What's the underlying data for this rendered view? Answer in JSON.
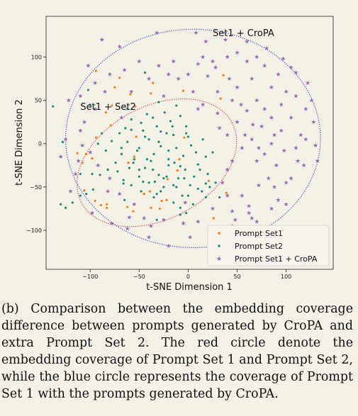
{
  "chart_data": {
    "type": "scatter",
    "title": "",
    "xlabel": "t-SNE Dimension 1",
    "ylabel": "t-SNE Dimension 2",
    "xlim": [
      -145,
      148
    ],
    "ylim": [
      -145,
      147
    ],
    "xticks": [
      -100,
      -50,
      0,
      50,
      100
    ],
    "yticks": [
      -100,
      -50,
      0,
      50,
      100
    ],
    "xtick_labels": [
      "−100",
      "−50",
      "0",
      "50",
      "100"
    ],
    "ytick_labels": [
      "−100",
      "−50",
      "0",
      "50",
      "100"
    ],
    "grid": false,
    "legend_position": "bottom-right",
    "series": [
      {
        "name": "Prompt Set1",
        "color": "#ff7f0e",
        "marker": "dot",
        "points": [
          [
            -78,
            44
          ],
          [
            -59,
            57
          ],
          [
            -36,
            70
          ],
          [
            -94,
            84
          ],
          [
            -83,
            -70
          ],
          [
            -70,
            76
          ],
          [
            -5,
            61
          ],
          [
            -75,
            65
          ],
          [
            -106,
            -54
          ],
          [
            -38,
            -74
          ],
          [
            -39,
            -55
          ],
          [
            -61,
            -22
          ],
          [
            33,
            52
          ],
          [
            36,
            79
          ],
          [
            -45,
            -58
          ],
          [
            -22,
            -65
          ],
          [
            -98,
            -17
          ],
          [
            21,
            -43
          ],
          [
            -84,
            36
          ],
          [
            -104,
            -12
          ],
          [
            -53,
            8
          ],
          [
            26,
            -86
          ],
          [
            -108,
            -22
          ],
          [
            -113,
            -11
          ],
          [
            -4,
            7
          ],
          [
            39,
            -57
          ],
          [
            -38,
            58
          ],
          [
            -27,
            -66
          ],
          [
            -79,
            21
          ],
          [
            -62,
            -73
          ],
          [
            -55,
            -15
          ],
          [
            -89,
            -71
          ],
          [
            -95,
            -66
          ],
          [
            -11,
            -31
          ],
          [
            -94,
            7
          ],
          [
            -29,
            -75
          ],
          [
            -54,
            43
          ],
          [
            -21,
            -41
          ],
          [
            -9,
            -18
          ],
          [
            -83,
            -74
          ],
          [
            -56,
            -78
          ]
        ]
      },
      {
        "name": "Prompt Set2",
        "color": "#1a8a7c",
        "marker": "dot",
        "points": [
          [
            -70,
            12
          ],
          [
            -58,
            16
          ],
          [
            -40,
            5
          ],
          [
            -28,
            -3
          ],
          [
            -15,
            10
          ],
          [
            -5,
            -14
          ],
          [
            3,
            -2
          ],
          [
            10,
            -24
          ],
          [
            -20,
            -25
          ],
          [
            -35,
            -12
          ],
          [
            -50,
            -5
          ],
          [
            -62,
            2
          ],
          [
            -44,
            -28
          ],
          [
            -30,
            -36
          ],
          [
            -10,
            -40
          ],
          [
            2,
            -48
          ],
          [
            14,
            -55
          ],
          [
            20,
            -35
          ],
          [
            8,
            -10
          ],
          [
            -2,
            20
          ],
          [
            -18,
            26
          ],
          [
            -32,
            20
          ],
          [
            -48,
            24
          ],
          [
            -55,
            -18
          ],
          [
            -68,
            -12
          ],
          [
            -78,
            3
          ],
          [
            -40,
            -45
          ],
          [
            -25,
            -50
          ],
          [
            -6,
            -60
          ],
          [
            5,
            -70
          ],
          [
            18,
            -62
          ],
          [
            28,
            -45
          ],
          [
            32,
            -62
          ],
          [
            -12,
            -5
          ],
          [
            -22,
            12
          ],
          [
            -36,
            30
          ],
          [
            -46,
            15
          ],
          [
            -58,
            28
          ],
          [
            -24,
            36
          ],
          [
            -8,
            32
          ],
          [
            0,
            8
          ],
          [
            15,
            5
          ],
          [
            25,
            -10
          ],
          [
            18,
            -15
          ],
          [
            -88,
            12
          ],
          [
            -72,
            -32
          ],
          [
            -50,
            -38
          ],
          [
            -66,
            -42
          ],
          [
            -35,
            -62
          ],
          [
            -15,
            -68
          ],
          [
            -2,
            -80
          ],
          [
            -20,
            -18
          ],
          [
            -42,
            -18
          ],
          [
            -64,
            18
          ],
          [
            -30,
            2
          ],
          [
            -12,
            -50
          ],
          [
            10,
            -52
          ],
          [
            -3,
            -30
          ],
          [
            -28,
            14
          ],
          [
            -52,
            -8
          ],
          [
            -38,
            -20
          ],
          [
            -20,
            -8
          ],
          [
            -8,
            -26
          ],
          [
            6,
            -38
          ],
          [
            22,
            -50
          ],
          [
            -44,
            8
          ],
          [
            -60,
            -28
          ],
          [
            -74,
            -22
          ],
          [
            -62,
            40
          ],
          [
            -30,
            48
          ],
          [
            -12,
            44
          ],
          [
            -48,
            -55
          ],
          [
            -28,
            -55
          ],
          [
            -15,
            -48
          ],
          [
            -4,
            -40
          ],
          [
            -92,
            0
          ],
          [
            -84,
            -8
          ],
          [
            -42,
            34
          ],
          [
            -16,
            20
          ],
          [
            -2,
            12
          ],
          [
            -34,
            -44
          ],
          [
            -22,
            -38
          ],
          [
            -8,
            -74
          ],
          [
            -58,
            -48
          ],
          [
            -82,
            -30
          ],
          [
            -68,
            -5
          ],
          [
            -50,
            -30
          ],
          [
            -36,
            -30
          ],
          [
            -14,
            -22
          ],
          [
            12,
            -30
          ],
          [
            0,
            -60
          ],
          [
            -25,
            -40
          ],
          [
            -46,
            -44
          ],
          [
            -65,
            -65
          ],
          [
            -100,
            45
          ],
          [
            -130,
            -70
          ],
          [
            -125,
            -74
          ],
          [
            -138,
            43
          ],
          [
            -98,
            -35
          ],
          [
            -32,
            -88
          ],
          [
            18,
            -46
          ],
          [
            -8,
            -82
          ],
          [
            -104,
            -58
          ],
          [
            -102,
            62
          ],
          [
            -118,
            -68
          ],
          [
            -128,
            2
          ],
          [
            -90,
            -36
          ],
          [
            -110,
            -60
          ],
          [
            -97,
            -53
          ],
          [
            -110,
            -35
          ],
          [
            -44,
            82
          ],
          [
            -32,
            -58
          ],
          [
            -66,
            -46
          ],
          [
            -56,
            -22
          ]
        ]
      },
      {
        "name": "Prompt Set1 + CroPA",
        "color": "#9a6ab8",
        "marker": "star",
        "points": [
          [
            -32,
            128
          ],
          [
            8,
            128
          ],
          [
            -70,
            112
          ],
          [
            -88,
            120
          ],
          [
            -102,
            90
          ],
          [
            -85,
            60
          ],
          [
            -110,
            55
          ],
          [
            -95,
            40
          ],
          [
            -122,
            50
          ],
          [
            -106,
            25
          ],
          [
            -125,
            5
          ],
          [
            -108,
            -2
          ],
          [
            -130,
            -15
          ],
          [
            -115,
            -35
          ],
          [
            -120,
            -55
          ],
          [
            -98,
            -80
          ],
          [
            -78,
            -92
          ],
          [
            -62,
            -98
          ],
          [
            -40,
            -108
          ],
          [
            -20,
            -118
          ],
          [
            2,
            -108
          ],
          [
            28,
            -102
          ],
          [
            45,
            -95
          ],
          [
            65,
            -86
          ],
          [
            85,
            -75
          ],
          [
            100,
            -45
          ],
          [
            112,
            -20
          ],
          [
            120,
            5
          ],
          [
            128,
            25
          ],
          [
            126,
            50
          ],
          [
            122,
            70
          ],
          [
            110,
            82
          ],
          [
            97,
            98
          ],
          [
            80,
            110
          ],
          [
            60,
            118
          ],
          [
            38,
            120
          ],
          [
            18,
            118
          ],
          [
            40,
            100
          ],
          [
            25,
            95
          ],
          [
            60,
            95
          ],
          [
            78,
            90
          ],
          [
            65,
            75
          ],
          [
            85,
            65
          ],
          [
            50,
            65
          ],
          [
            70,
            50
          ],
          [
            95,
            45
          ],
          [
            105,
            30
          ],
          [
            85,
            30
          ],
          [
            110,
            55
          ],
          [
            120,
            40
          ],
          [
            60,
            38
          ],
          [
            75,
            20
          ],
          [
            95,
            15
          ],
          [
            110,
            -5
          ],
          [
            85,
            0
          ],
          [
            65,
            5
          ],
          [
            70,
            -20
          ],
          [
            90,
            -25
          ],
          [
            105,
            -40
          ],
          [
            72,
            -48
          ],
          [
            55,
            -60
          ],
          [
            45,
            -78
          ],
          [
            62,
            -72
          ],
          [
            35,
            -45
          ],
          [
            45,
            -20
          ],
          [
            55,
            -5
          ],
          [
            40,
            10
          ],
          [
            50,
            25
          ],
          [
            30,
            35
          ],
          [
            15,
            45
          ],
          [
            5,
            60
          ],
          [
            -10,
            75
          ],
          [
            -30,
            90
          ],
          [
            -50,
            95
          ],
          [
            -65,
            85
          ],
          [
            -80,
            80
          ],
          [
            -95,
            70
          ],
          [
            -20,
            80
          ],
          [
            0,
            80
          ],
          [
            20,
            78
          ],
          [
            30,
            60
          ],
          [
            45,
            50
          ],
          [
            58,
            10
          ],
          [
            72,
            -5
          ],
          [
            82,
            -40
          ],
          [
            100,
            -70
          ],
          [
            70,
            -90
          ],
          [
            40,
            -60
          ],
          [
            25,
            -75
          ],
          [
            10,
            -90
          ],
          [
            -5,
            -92
          ],
          [
            -25,
            -88
          ],
          [
            -45,
            -86
          ],
          [
            -55,
            -70
          ],
          [
            -70,
            -58
          ],
          [
            -80,
            -40
          ],
          [
            -92,
            -25
          ],
          [
            -100,
            -10
          ],
          [
            -60,
            -85
          ],
          [
            -38,
            -95
          ],
          [
            15,
            100
          ],
          [
            50,
            105
          ],
          [
            70,
            100
          ],
          [
            100,
            60
          ],
          [
            115,
            10
          ],
          [
            98,
            -8
          ],
          [
            88,
            10
          ],
          [
            78,
            -12
          ],
          [
            66,
            22
          ],
          [
            54,
            45
          ],
          [
            42,
            75
          ],
          [
            28,
            88
          ],
          [
            10,
            92
          ],
          [
            -15,
            95
          ],
          [
            -40,
            75
          ],
          [
            -58,
            60
          ],
          [
            48,
            -88
          ],
          [
            -3,
            -68
          ],
          [
            105,
            88
          ],
          [
            130,
            -2
          ],
          [
            118,
            -25
          ],
          [
            88,
            -50
          ],
          [
            62,
            -80
          ],
          [
            92,
            -65
          ],
          [
            40,
            -30
          ],
          [
            32,
            18
          ],
          [
            10,
            40
          ],
          [
            -25,
            55
          ],
          [
            -68,
            30
          ],
          [
            -82,
            -55
          ],
          [
            -110,
            15
          ],
          [
            78,
            40
          ],
          [
            92,
            80
          ],
          [
            -112,
            -20
          ],
          [
            132,
            -20
          ]
        ]
      }
    ],
    "annotations": [
      {
        "text": "Set1 + CroPA",
        "x": 25,
        "y": 124
      },
      {
        "text": "Set1 + Set2",
        "x": -110,
        "y": 39
      }
    ],
    "ellipses": [
      {
        "color": "#e03030",
        "cx": -32,
        "cy": -22,
        "rx": 87,
        "ry": 65,
        "angle_deg": -28
      },
      {
        "color": "#3a3ad0",
        "cx": 5,
        "cy": 6,
        "rx": 130,
        "ry": 126,
        "angle_deg": 0
      }
    ]
  },
  "caption": "(b) Comparison between the embedding coverage difference between prompts generated by CroPA and extra Prompt Set 2.  The red circle denote the embedding coverage of Prompt Set 1 and Prompt Set 2, while the blue circle represents the coverage of Prompt Set 1 with the prompts generated by CroPA.",
  "colors": {
    "background": "#f3f0e6",
    "frame": "#222222",
    "legend_border": "#cccccc",
    "legend_bg": "#f6f4ec"
  }
}
